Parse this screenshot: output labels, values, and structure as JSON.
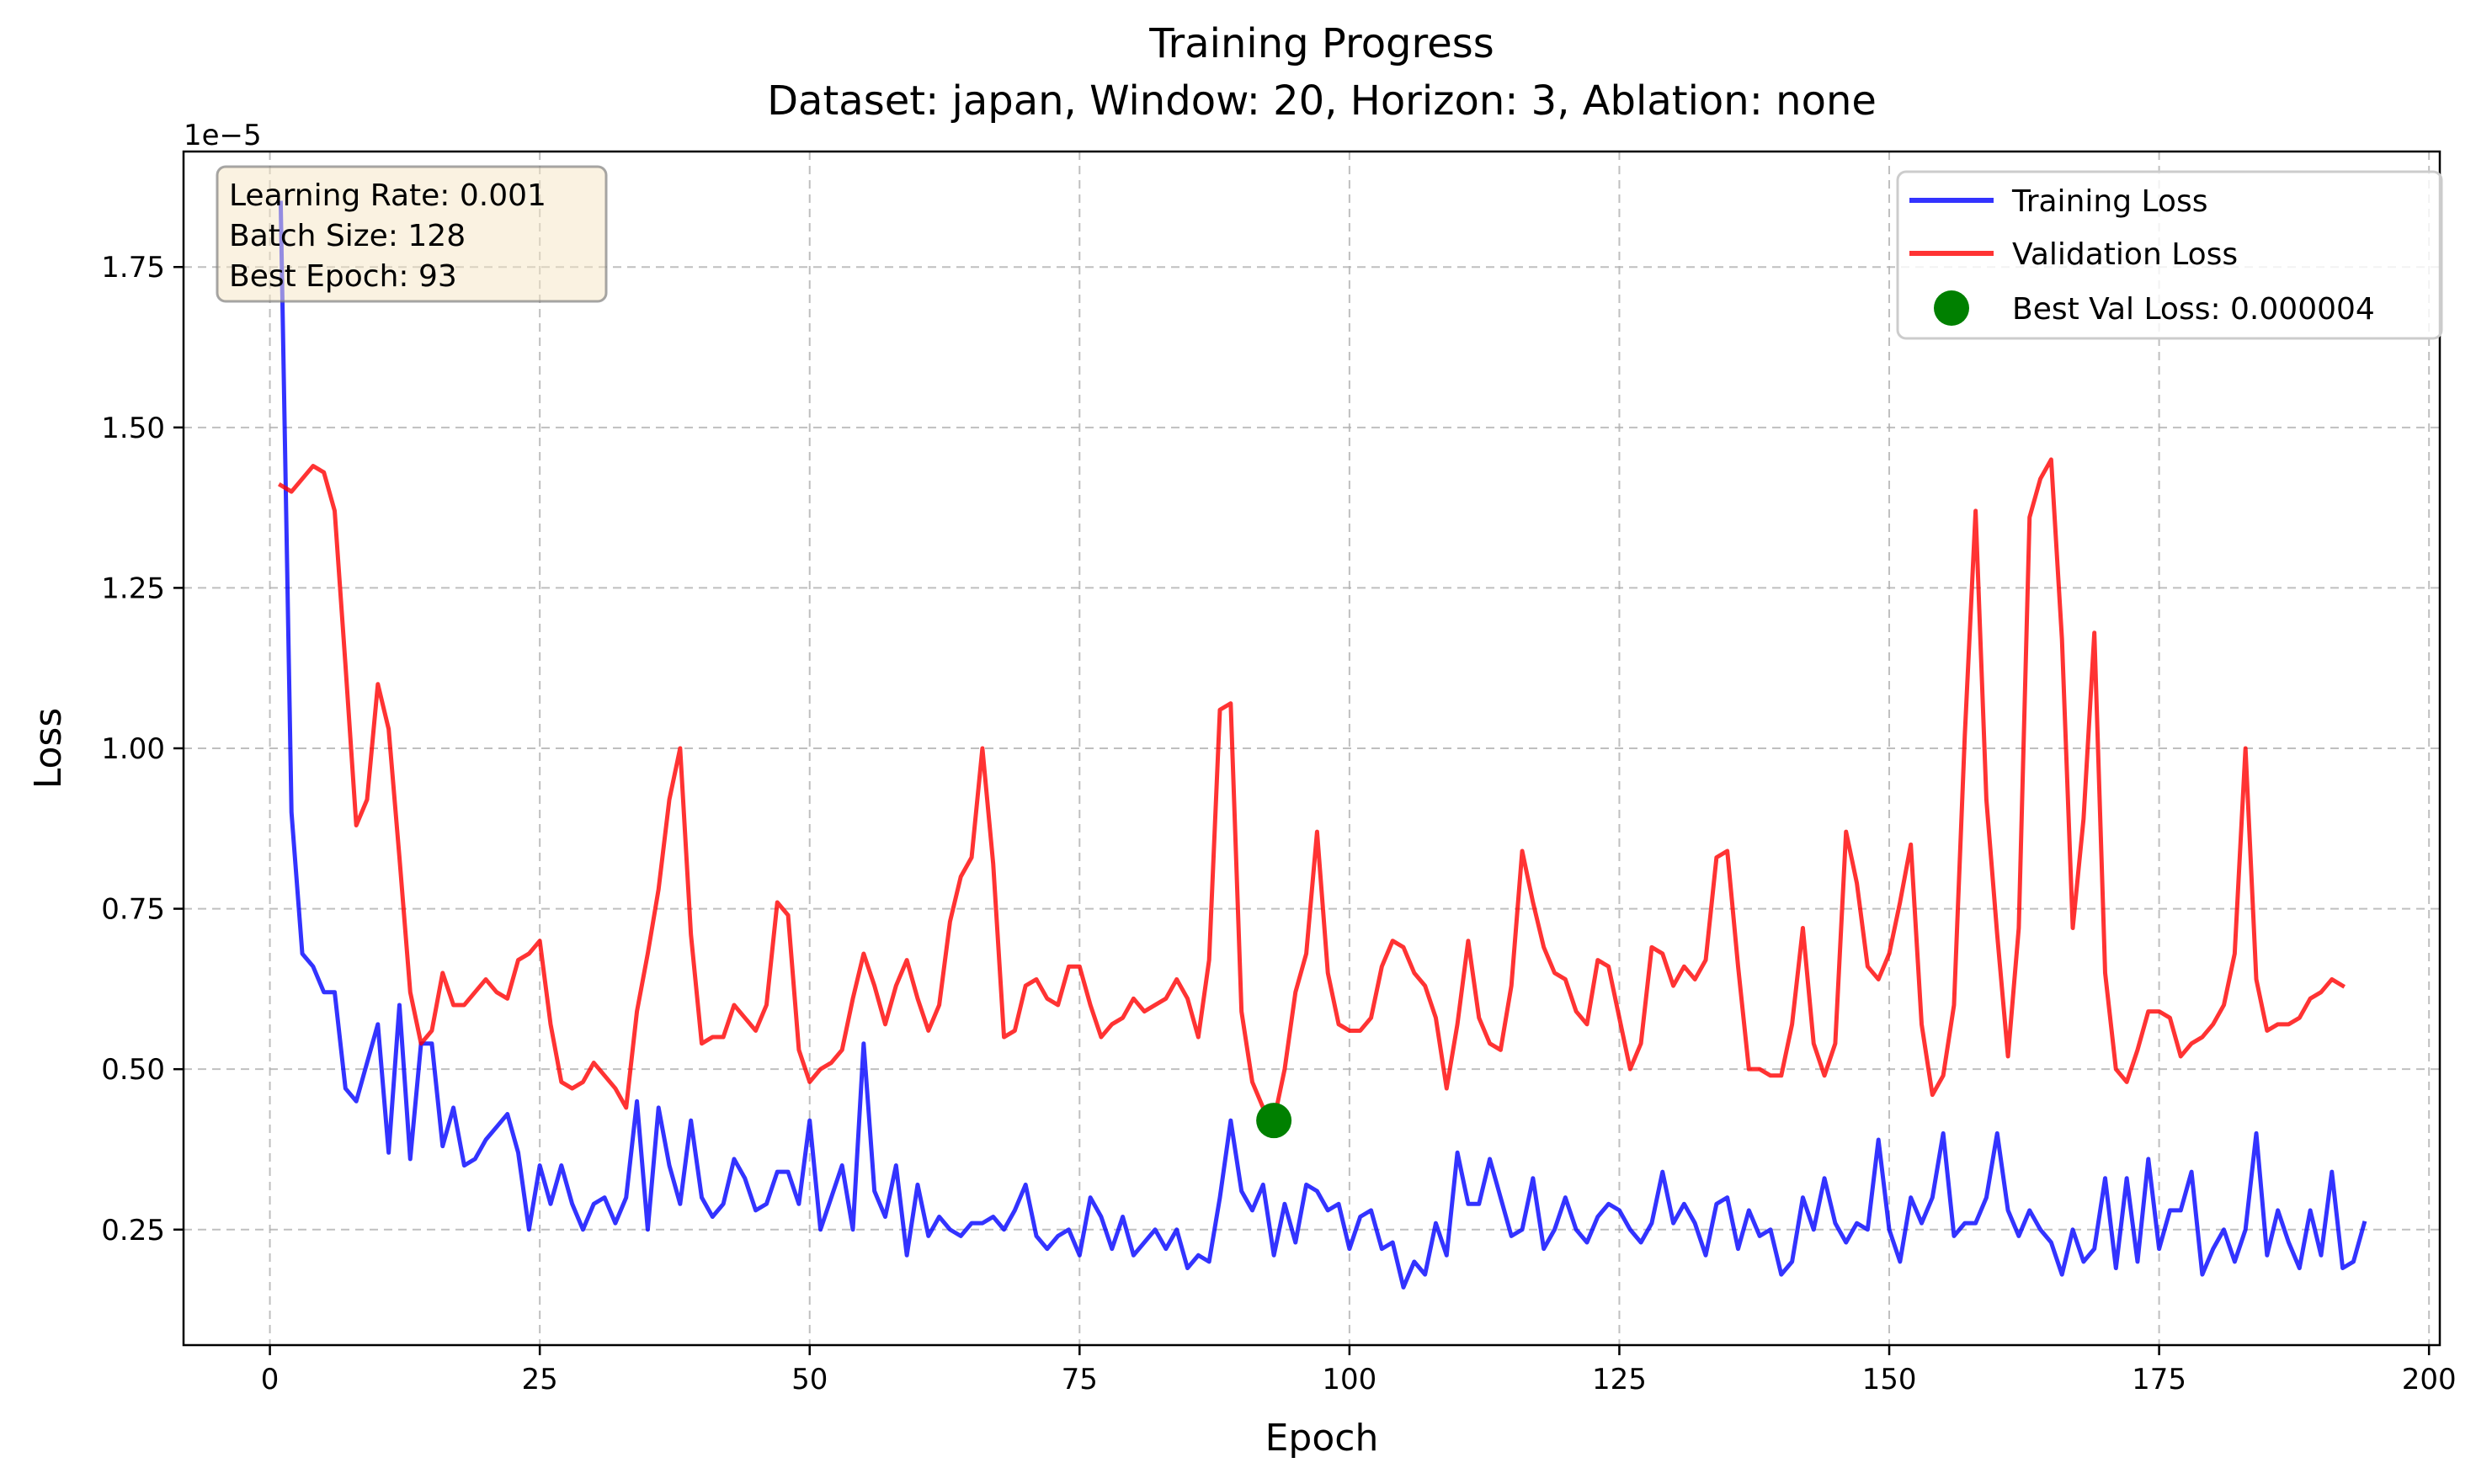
{
  "chart_data": {
    "type": "line",
    "title": "Training Progress",
    "subtitle": "Dataset: japan, Window: 20, Horizon: 3, Ablation: none",
    "xlabel": "Epoch",
    "ylabel": "Loss",
    "y_scale_label": "1e−5",
    "y_multiplier": 1e-05,
    "xlim": [
      -8,
      201
    ],
    "ylim": [
      0.07,
      1.93
    ],
    "x_ticks": [
      0,
      25,
      50,
      75,
      100,
      125,
      150,
      175,
      200
    ],
    "x_tick_labels": [
      "0",
      "25",
      "50",
      "75",
      "100",
      "125",
      "150",
      "175",
      "200"
    ],
    "y_ticks": [
      0.25,
      0.5,
      0.75,
      1.0,
      1.25,
      1.5,
      1.75
    ],
    "y_tick_labels": [
      "0.25",
      "0.50",
      "0.75",
      "1.00",
      "1.25",
      "1.50",
      "1.75"
    ],
    "grid": true,
    "legend_position": "top-right",
    "series": [
      {
        "name": "Training Loss",
        "color": "#0000ff",
        "x_start": 1,
        "values": [
          1.85,
          0.9,
          0.68,
          0.66,
          0.62,
          0.62,
          0.47,
          0.45,
          0.51,
          0.57,
          0.37,
          0.6,
          0.36,
          0.54,
          0.54,
          0.38,
          0.44,
          0.35,
          0.36,
          0.39,
          0.41,
          0.43,
          0.37,
          0.25,
          0.35,
          0.29,
          0.35,
          0.29,
          0.25,
          0.29,
          0.3,
          0.26,
          0.3,
          0.45,
          0.25,
          0.44,
          0.35,
          0.29,
          0.42,
          0.3,
          0.27,
          0.29,
          0.36,
          0.33,
          0.28,
          0.29,
          0.34,
          0.34,
          0.29,
          0.42,
          0.25,
          0.3,
          0.35,
          0.25,
          0.54,
          0.31,
          0.27,
          0.35,
          0.21,
          0.32,
          0.24,
          0.27,
          0.25,
          0.24,
          0.26,
          0.26,
          0.27,
          0.25,
          0.28,
          0.32,
          0.24,
          0.22,
          0.24,
          0.25,
          0.21,
          0.3,
          0.27,
          0.22,
          0.27,
          0.21,
          0.23,
          0.25,
          0.22,
          0.25,
          0.19,
          0.21,
          0.2,
          0.3,
          0.42,
          0.31,
          0.28,
          0.32,
          0.21,
          0.29,
          0.23,
          0.32,
          0.31,
          0.28,
          0.29,
          0.22,
          0.27,
          0.28,
          0.22,
          0.23,
          0.16,
          0.2,
          0.18,
          0.26,
          0.21,
          0.37,
          0.29,
          0.29,
          0.36,
          0.3,
          0.24,
          0.25,
          0.33,
          0.22,
          0.25,
          0.3,
          0.25,
          0.23,
          0.27,
          0.29,
          0.28,
          0.25,
          0.23,
          0.26,
          0.34,
          0.26,
          0.29,
          0.26,
          0.21,
          0.29,
          0.3,
          0.22,
          0.28,
          0.24,
          0.25,
          0.18,
          0.2,
          0.3,
          0.25,
          0.33,
          0.26,
          0.23,
          0.26,
          0.25,
          0.39,
          0.25,
          0.2,
          0.3,
          0.26,
          0.3,
          0.4,
          0.24,
          0.26,
          0.26,
          0.3,
          0.4,
          0.28,
          0.24,
          0.28,
          0.25,
          0.23,
          0.18,
          0.25,
          0.2,
          0.22,
          0.33,
          0.19,
          0.33,
          0.2,
          0.36,
          0.22,
          0.28,
          0.28,
          0.34,
          0.18,
          0.22,
          0.25,
          0.2,
          0.25,
          0.4,
          0.21,
          0.28,
          0.23,
          0.19,
          0.28,
          0.21,
          0.34,
          0.19,
          0.2,
          0.26
        ]
      },
      {
        "name": "Validation Loss",
        "color": "#ff0000",
        "x_start": 1,
        "values": [
          1.41,
          1.4,
          1.42,
          1.44,
          1.43,
          1.37,
          1.13,
          0.88,
          0.92,
          1.1,
          1.03,
          0.83,
          0.62,
          0.54,
          0.56,
          0.65,
          0.6,
          0.6,
          0.62,
          0.64,
          0.62,
          0.61,
          0.67,
          0.68,
          0.7,
          0.57,
          0.48,
          0.47,
          0.48,
          0.51,
          0.49,
          0.47,
          0.44,
          0.59,
          0.68,
          0.78,
          0.92,
          1.0,
          0.71,
          0.54,
          0.55,
          0.55,
          0.6,
          0.58,
          0.56,
          0.6,
          0.76,
          0.74,
          0.53,
          0.48,
          0.5,
          0.51,
          0.53,
          0.61,
          0.68,
          0.63,
          0.57,
          0.63,
          0.67,
          0.61,
          0.56,
          0.6,
          0.73,
          0.8,
          0.83,
          1.0,
          0.82,
          0.55,
          0.56,
          0.63,
          0.64,
          0.61,
          0.6,
          0.66,
          0.66,
          0.6,
          0.55,
          0.57,
          0.58,
          0.61,
          0.59,
          0.6,
          0.61,
          0.64,
          0.61,
          0.55,
          0.67,
          1.06,
          1.07,
          0.59,
          0.48,
          0.44,
          0.42,
          0.5,
          0.62,
          0.68,
          0.87,
          0.65,
          0.57,
          0.56,
          0.56,
          0.58,
          0.66,
          0.7,
          0.69,
          0.65,
          0.63,
          0.58,
          0.47,
          0.57,
          0.7,
          0.58,
          0.54,
          0.53,
          0.63,
          0.84,
          0.76,
          0.69,
          0.65,
          0.64,
          0.59,
          0.57,
          0.67,
          0.66,
          0.58,
          0.5,
          0.54,
          0.69,
          0.68,
          0.63,
          0.66,
          0.64,
          0.67,
          0.83,
          0.84,
          0.66,
          0.5,
          0.5,
          0.49,
          0.49,
          0.57,
          0.72,
          0.54,
          0.49,
          0.54,
          0.87,
          0.79,
          0.66,
          0.64,
          0.68,
          0.76,
          0.85,
          0.57,
          0.46,
          0.49,
          0.6,
          1.02,
          1.37,
          0.92,
          0.71,
          0.52,
          0.72,
          1.36,
          1.42,
          1.45,
          1.17,
          0.72,
          0.89,
          1.18,
          0.65,
          0.5,
          0.48,
          0.53,
          0.59,
          0.59,
          0.58,
          0.52,
          0.54,
          0.55,
          0.57,
          0.6,
          0.68,
          1.0,
          0.64,
          0.56,
          0.57,
          0.57,
          0.58,
          0.61,
          0.62,
          0.64,
          0.63
        ]
      }
    ],
    "best_point": {
      "name": "Best Val Loss: 0.000004",
      "x": 93,
      "y": 0.42,
      "color": "#008000"
    },
    "info_box": {
      "lines": [
        "Learning Rate: 0.001",
        "Batch Size: 128",
        "Best Epoch: 93"
      ],
      "placement": "top-left"
    }
  }
}
